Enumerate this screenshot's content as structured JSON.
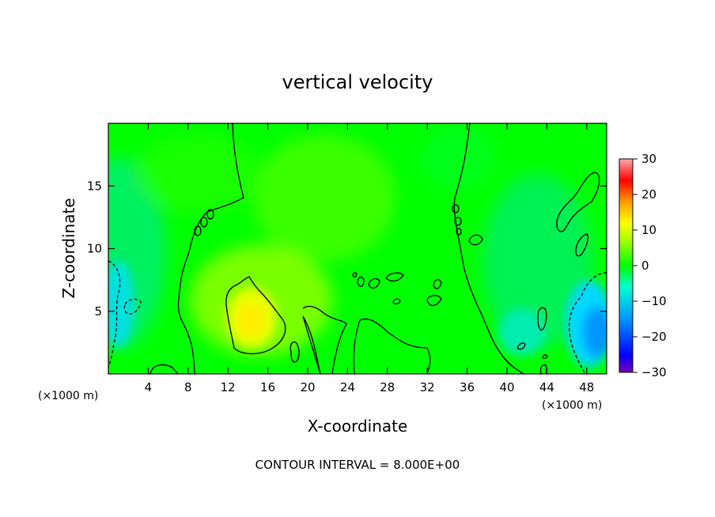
{
  "chart_data": {
    "type": "heatmap",
    "title": "vertical velocity",
    "xlabel": "X-coordinate",
    "ylabel": "Z-coordinate",
    "x_unit": "(×1000 m)",
    "x_unit_right": "(×1000 m)",
    "footer": "CONTOUR INTERVAL = 8.000E+00",
    "xlim": [
      0,
      50
    ],
    "ylim": [
      0,
      20
    ],
    "x_ticks": [
      4,
      8,
      12,
      16,
      20,
      24,
      28,
      32,
      36,
      40,
      44,
      48
    ],
    "y_ticks": [
      5,
      10,
      15
    ],
    "colorbar": {
      "range": [
        -30,
        30
      ],
      "ticks": [
        30,
        20,
        10,
        0,
        -10,
        -20,
        -30
      ],
      "tick_labels": [
        "30",
        "20",
        "10",
        "0",
        "−10",
        "−20",
        "−30"
      ]
    },
    "contour_interval": 8.0,
    "grid": false,
    "features": [
      {
        "kind": "updraft",
        "x": 13.5,
        "z": 4.5,
        "peak": 12
      },
      {
        "kind": "updraft",
        "x": 24,
        "z": 6,
        "peak": 3
      },
      {
        "kind": "downdraft",
        "x": 47.5,
        "z": 3.5,
        "peak": -14
      },
      {
        "kind": "downdraft",
        "x": 1,
        "z": 6,
        "peak": -9
      }
    ]
  },
  "colors": {
    "background_field": "#00ff00",
    "positive": "#ffff00",
    "negative": "#00c8ff",
    "contour": "#000000"
  }
}
